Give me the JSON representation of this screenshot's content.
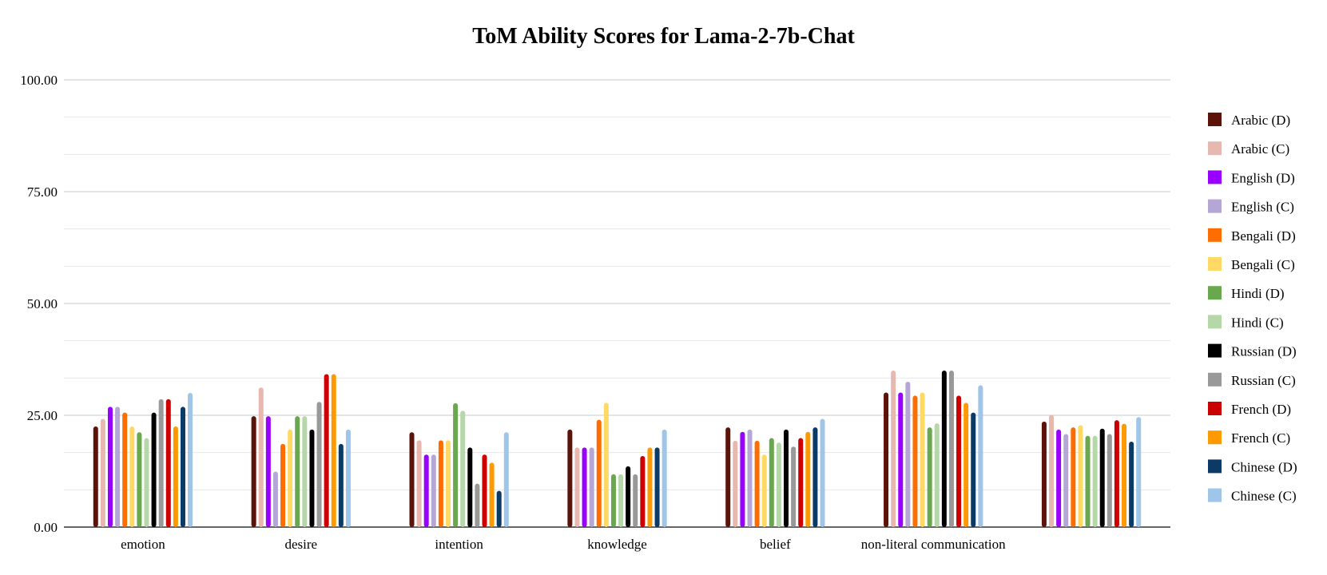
{
  "chart_data": {
    "type": "bar",
    "title": "ToM Ability Scores for Lama-2-7b-Chat",
    "xlabel": "",
    "ylabel": "",
    "ylim": [
      0,
      100
    ],
    "y_ticks": [
      "0.00",
      "25.00",
      "50.00",
      "75.00",
      "100.00"
    ],
    "grid": true,
    "legend_position": "right",
    "categories": [
      "emotion",
      "desire",
      "intention",
      "knowledge",
      "belief",
      "non-literal communication",
      ""
    ],
    "series": [
      {
        "name": "Arabic (D)",
        "color": "#5c1309",
        "values": [
          22.5,
          24.8,
          21.2,
          21.8,
          22.3,
          30.1,
          23.6
        ]
      },
      {
        "name": "Arabic (C)",
        "color": "#e6b8af",
        "values": [
          24.2,
          31.2,
          19.4,
          17.8,
          19.3,
          35.0,
          25.1
        ]
      },
      {
        "name": "English (D)",
        "color": "#9900ff",
        "values": [
          26.9,
          24.8,
          16.2,
          17.8,
          21.3,
          30.1,
          21.8
        ]
      },
      {
        "name": "English (C)",
        "color": "#b4a7d6",
        "values": [
          26.9,
          12.4,
          16.2,
          17.8,
          21.8,
          32.5,
          20.8
        ]
      },
      {
        "name": "Bengali (D)",
        "color": "#ff6d01",
        "values": [
          25.6,
          18.6,
          19.4,
          24.0,
          19.3,
          29.4,
          22.3
        ]
      },
      {
        "name": "Bengali (C)",
        "color": "#ffd966",
        "values": [
          22.5,
          21.8,
          19.4,
          27.8,
          16.2,
          30.1,
          22.8
        ]
      },
      {
        "name": "Hindi (D)",
        "color": "#6aa84f",
        "values": [
          21.2,
          24.8,
          27.7,
          11.8,
          19.9,
          22.3,
          20.4
        ]
      },
      {
        "name": "Hindi (C)",
        "color": "#b6d7a8",
        "values": [
          19.9,
          24.8,
          26.0,
          11.8,
          18.9,
          23.2,
          20.4
        ]
      },
      {
        "name": "Russian (D)",
        "color": "#000000",
        "values": [
          25.6,
          21.8,
          17.8,
          13.6,
          21.8,
          35.0,
          22.0
        ]
      },
      {
        "name": "Russian (C)",
        "color": "#999999",
        "values": [
          28.6,
          28.0,
          9.7,
          11.8,
          18.0,
          35.0,
          20.8
        ]
      },
      {
        "name": "French (D)",
        "color": "#cc0000",
        "values": [
          28.6,
          34.2,
          16.2,
          15.9,
          19.9,
          29.4,
          23.9
        ]
      },
      {
        "name": "French (C)",
        "color": "#ff9900",
        "values": [
          22.5,
          34.2,
          14.4,
          17.8,
          21.3,
          27.8,
          23.1
        ]
      },
      {
        "name": "Chinese (D)",
        "color": "#0b3a66",
        "values": [
          26.9,
          18.6,
          8.1,
          17.8,
          22.3,
          25.6,
          19.1
        ]
      },
      {
        "name": "Chinese (C)",
        "color": "#9fc5e8",
        "values": [
          30.0,
          21.8,
          21.2,
          21.8,
          24.2,
          31.7,
          24.6
        ]
      }
    ]
  }
}
